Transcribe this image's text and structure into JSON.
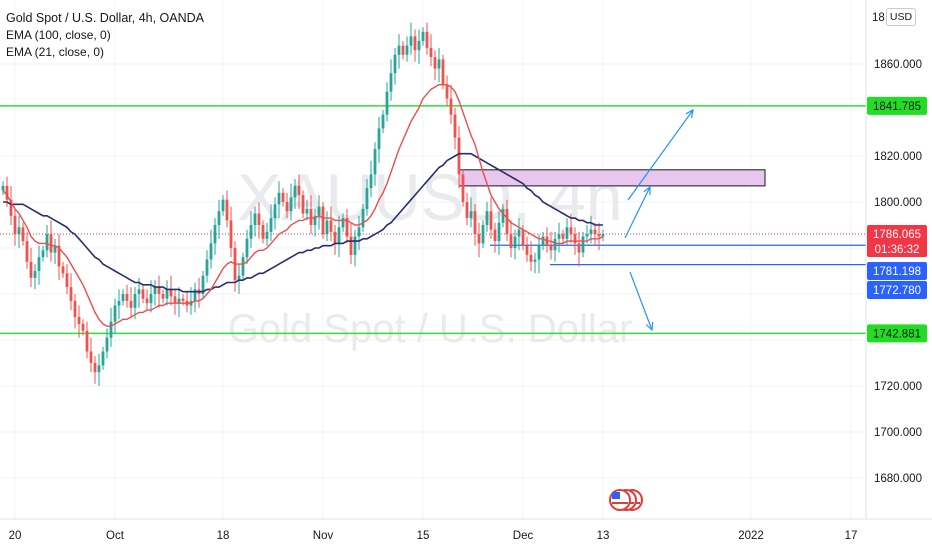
{
  "header": {
    "title": "Gold Spot / U.S. Dollar, 4h, OANDA",
    "indicator1": "EMA (100, close, 0)",
    "indicator2": "EMA (21, close, 0)"
  },
  "currency_button": "USD",
  "watermark": {
    "symbol": "XAUUSD, 4h",
    "description": "Gold Spot / U.S. Dollar"
  },
  "price_axis": {
    "ticks": [
      "1860.000",
      "1820.000",
      "1800.000",
      "1720.000",
      "1700.000",
      "1680.000"
    ],
    "partial_top": "18"
  },
  "labels": {
    "resistance_top": "1841.785",
    "last_price": "1786.065",
    "countdown": "01:36:32",
    "level_upper": "1781.198",
    "level_lower": "1772.780",
    "support_bottom": "1742.881"
  },
  "time_axis": [
    "20",
    "Oct",
    "18",
    "Nov",
    "15",
    "Dec",
    "13",
    "2022",
    "17"
  ],
  "colors": {
    "up": "#26a69a",
    "down": "#ef5350",
    "ema100": "#2b2d6e",
    "ema21": "#ef4c4c",
    "green_line": "#33dd33",
    "blue_line": "#2962ff",
    "zone_fill": "#e8c6ee",
    "last_price_bg": "#f23645",
    "blue_label_bg": "#2962ff",
    "green_label_bg": "#22dd22"
  },
  "chart_data": {
    "type": "candlestick",
    "symbol": "Gold Spot / U.S. Dollar",
    "timeframe": "4h",
    "y_range": [
      1713,
      1880
    ],
    "x_labels": [
      "20",
      "Oct",
      "18",
      "Nov",
      "15",
      "Dec",
      "13",
      "2022",
      "17"
    ],
    "x_label_positions": [
      3,
      28,
      55,
      80,
      105,
      130,
      150,
      187,
      212
    ],
    "horizontal_levels": [
      {
        "price": 1841.785,
        "style": "green"
      },
      {
        "price": 1742.881,
        "style": "green"
      },
      {
        "price": 1781.198,
        "style": "blue"
      },
      {
        "price": 1772.78,
        "style": "blue"
      },
      {
        "price": 1786.065,
        "style": "last-price-dotted"
      }
    ],
    "zone": {
      "from_bar": 114,
      "to_bar": 191,
      "high": 1814,
      "low": 1807
    },
    "closes": [
      1807,
      1801,
      1794,
      1786,
      1789,
      1783,
      1774,
      1767,
      1770,
      1776,
      1779,
      1786,
      1778,
      1781,
      1772,
      1769,
      1763,
      1757,
      1750,
      1747,
      1744,
      1735,
      1730,
      1726,
      1729,
      1735,
      1741,
      1748,
      1755,
      1757,
      1760,
      1757,
      1754,
      1760,
      1762,
      1758,
      1756,
      1760,
      1763,
      1760,
      1758,
      1762,
      1759,
      1756,
      1758,
      1757,
      1755,
      1757,
      1762,
      1760,
      1768,
      1775,
      1782,
      1790,
      1796,
      1801,
      1792,
      1780,
      1766,
      1768,
      1776,
      1784,
      1790,
      1795,
      1790,
      1784,
      1787,
      1793,
      1799,
      1804,
      1800,
      1796,
      1802,
      1807,
      1803,
      1795,
      1797,
      1790,
      1794,
      1798,
      1786,
      1792,
      1787,
      1782,
      1789,
      1793,
      1785,
      1777,
      1785,
      1789,
      1797,
      1806,
      1812,
      1823,
      1832,
      1838,
      1848,
      1856,
      1864,
      1868,
      1864,
      1868,
      1872,
      1866,
      1870,
      1874,
      1867,
      1863,
      1858,
      1862,
      1851,
      1845,
      1838,
      1828,
      1812,
      1800,
      1793,
      1796,
      1786,
      1782,
      1790,
      1796,
      1788,
      1783,
      1791,
      1797,
      1786,
      1780,
      1785,
      1788,
      1781,
      1777,
      1774,
      1775,
      1781,
      1785,
      1781,
      1779,
      1784,
      1786,
      1784,
      1789,
      1786,
      1782,
      1778,
      1785,
      1786,
      1788,
      1786,
      1785,
      1786
    ],
    "ema21": [
      1805,
      1803,
      1800,
      1797,
      1795,
      1792,
      1789,
      1785,
      1783,
      1782,
      1782,
      1782,
      1781,
      1781,
      1780,
      1778,
      1776,
      1773,
      1770,
      1767,
      1764,
      1760,
      1756,
      1752,
      1749,
      1747,
      1746,
      1746,
      1747,
      1748,
      1749,
      1749,
      1750,
      1751,
      1752,
      1752,
      1753,
      1753,
      1754,
      1755,
      1755,
      1756,
      1756,
      1756,
      1756,
      1756,
      1756,
      1756,
      1757,
      1757,
      1758,
      1760,
      1762,
      1765,
      1768,
      1771,
      1773,
      1774,
      1773,
      1773,
      1773,
      1774,
      1776,
      1778,
      1779,
      1779,
      1780,
      1782,
      1784,
      1786,
      1787,
      1788,
      1790,
      1791,
      1792,
      1792,
      1793,
      1793,
      1793,
      1794,
      1793,
      1793,
      1793,
      1792,
      1792,
      1792,
      1792,
      1791,
      1790,
      1790,
      1791,
      1792,
      1794,
      1797,
      1801,
      1804,
      1808,
      1813,
      1818,
      1823,
      1827,
      1831,
      1835,
      1838,
      1841,
      1845,
      1847,
      1849,
      1850,
      1851,
      1851,
      1851,
      1850,
      1848,
      1844,
      1839,
      1834,
      1829,
      1825,
      1819,
      1813,
      1808,
      1803,
      1800,
      1797,
      1795,
      1793,
      1791,
      1790,
      1789,
      1788,
      1787,
      1786,
      1785,
      1784,
      1784,
      1783,
      1783,
      1782,
      1782,
      1782,
      1783,
      1783,
      1783,
      1783,
      1783,
      1783,
      1784,
      1784,
      1784,
      1785
    ],
    "ema100": [
      1800,
      1800,
      1799,
      1799,
      1799,
      1799,
      1798,
      1797,
      1796,
      1795,
      1794,
      1794,
      1793,
      1792,
      1791,
      1790,
      1789,
      1787,
      1786,
      1784,
      1782,
      1780,
      1778,
      1776,
      1775,
      1773,
      1772,
      1771,
      1770,
      1769,
      1768,
      1767,
      1766,
      1765,
      1765,
      1764,
      1764,
      1764,
      1763,
      1763,
      1763,
      1762,
      1762,
      1762,
      1762,
      1761,
      1761,
      1761,
      1761,
      1761,
      1761,
      1762,
      1762,
      1763,
      1763,
      1764,
      1765,
      1765,
      1765,
      1766,
      1766,
      1767,
      1767,
      1768,
      1769,
      1769,
      1770,
      1771,
      1772,
      1773,
      1774,
      1775,
      1776,
      1777,
      1778,
      1778,
      1779,
      1779,
      1780,
      1780,
      1781,
      1781,
      1781,
      1782,
      1782,
      1782,
      1783,
      1783,
      1783,
      1783,
      1784,
      1784,
      1785,
      1786,
      1787,
      1788,
      1790,
      1791,
      1793,
      1795,
      1797,
      1799,
      1801,
      1803,
      1805,
      1807,
      1809,
      1811,
      1813,
      1815,
      1816,
      1818,
      1819,
      1820,
      1821,
      1821,
      1821,
      1821,
      1820,
      1819,
      1818,
      1817,
      1816,
      1815,
      1814,
      1813,
      1812,
      1811,
      1810,
      1809,
      1808,
      1806,
      1805,
      1803,
      1802,
      1800,
      1799,
      1798,
      1797,
      1796,
      1795,
      1794,
      1793,
      1793,
      1792,
      1792,
      1791,
      1791,
      1790,
      1790,
      1790
    ]
  }
}
